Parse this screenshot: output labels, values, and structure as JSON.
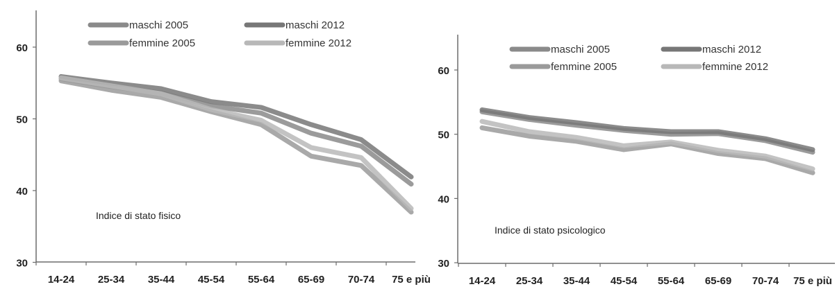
{
  "chart_data": [
    {
      "type": "line",
      "annotation": "Indice di stato fisico",
      "categories": [
        "14-24",
        "25-34",
        "35-44",
        "45-54",
        "55-64",
        "65-69",
        "70-74",
        "75 e più"
      ],
      "y_ticks": [
        30,
        40,
        50,
        60
      ],
      "ylim": [
        30,
        64
      ],
      "grid": false,
      "legend_position": "top",
      "series": [
        {
          "name": "maschi 2005",
          "color": "#8a8a8a",
          "values": [
            55.6,
            54.5,
            53.6,
            51.8,
            50.8,
            48.0,
            46.2,
            40.9
          ]
        },
        {
          "name": "maschi 2012",
          "color": "#777777",
          "values": [
            55.9,
            55.0,
            54.2,
            52.4,
            51.6,
            49.2,
            47.1,
            41.9
          ]
        },
        {
          "name": "femmine 2005",
          "color": "#9a9a9a",
          "values": [
            55.3,
            54.0,
            53.0,
            51.0,
            49.2,
            44.8,
            43.5,
            37.0
          ]
        },
        {
          "name": "femmine 2012",
          "color": "#b8b8b8",
          "values": [
            55.7,
            54.6,
            53.5,
            51.3,
            49.8,
            46.0,
            44.6,
            37.5
          ]
        }
      ]
    },
    {
      "type": "line",
      "annotation": "Indice di stato psicologico",
      "categories": [
        "14-24",
        "25-34",
        "35-44",
        "45-54",
        "55-64",
        "65-69",
        "70-74",
        "75 e più"
      ],
      "y_ticks": [
        30,
        40,
        50,
        60
      ],
      "ylim": [
        30,
        64
      ],
      "grid": false,
      "legend_position": "top",
      "series": [
        {
          "name": "maschi 2005",
          "color": "#8a8a8a",
          "values": [
            53.5,
            52.3,
            51.4,
            50.6,
            50.0,
            50.1,
            49.0,
            47.2
          ]
        },
        {
          "name": "maschi 2012",
          "color": "#777777",
          "values": [
            53.8,
            52.6,
            51.8,
            50.9,
            50.4,
            50.4,
            49.3,
            47.6
          ]
        },
        {
          "name": "femmine 2005",
          "color": "#9a9a9a",
          "values": [
            51.0,
            49.7,
            48.9,
            47.6,
            48.5,
            47.0,
            46.2,
            44.0
          ]
        },
        {
          "name": "femmine 2012",
          "color": "#b8b8b8",
          "values": [
            52.0,
            50.4,
            49.5,
            48.2,
            48.8,
            47.5,
            46.6,
            44.6
          ]
        }
      ]
    }
  ]
}
